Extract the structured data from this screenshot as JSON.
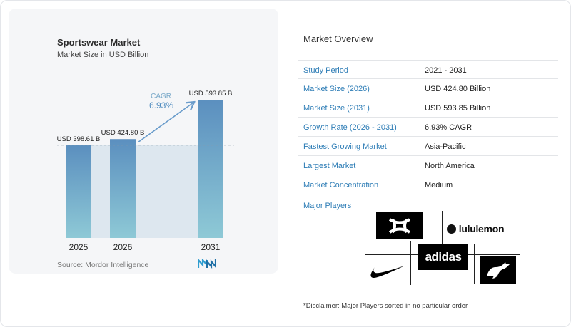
{
  "chart_data": {
    "type": "bar",
    "title": "Sportswear Market",
    "subtitle": "Market Size in USD Billion",
    "categories": [
      "2025",
      "2026",
      "2031"
    ],
    "values": [
      398.61,
      424.8,
      593.85
    ],
    "value_labels": [
      "USD 398.61 B",
      "USD 424.80 B",
      "USD 593.85 B"
    ],
    "cagr_label": "CAGR",
    "cagr_value": "6.93%",
    "source": "Source: Mordor Intelligence",
    "ylim": [
      0,
      620
    ],
    "colors": {
      "bar_top": "#5b8fbf",
      "bar_bottom": "#8ec9d6",
      "accent": "#6a9ccb",
      "band": "#dde7ef"
    }
  },
  "overview": {
    "title": "Market Overview",
    "rows": [
      {
        "label": "Study Period",
        "value": "2021 - 2031"
      },
      {
        "label": "Market Size (2026)",
        "value": "USD 424.80 Billion"
      },
      {
        "label": "Market Size (2031)",
        "value": "USD 593.85 Billion"
      },
      {
        "label": "Growth Rate (2026 - 2031)",
        "value": "6.93% CAGR"
      },
      {
        "label": "Fastest Growing Market",
        "value": "Asia-Pacific"
      },
      {
        "label": "Largest Market",
        "value": "North America"
      },
      {
        "label": "Market Concentration",
        "value": "Medium"
      }
    ]
  },
  "players": {
    "title": "Major Players",
    "logos": {
      "under_armour": "under-armour-logo",
      "lululemon": "lululemon",
      "adidas": "adidas",
      "nike": "nike-swoosh-logo",
      "puma": "puma-cat-logo"
    },
    "disclaimer": "*Disclaimer: Major Players sorted in no particular order"
  }
}
